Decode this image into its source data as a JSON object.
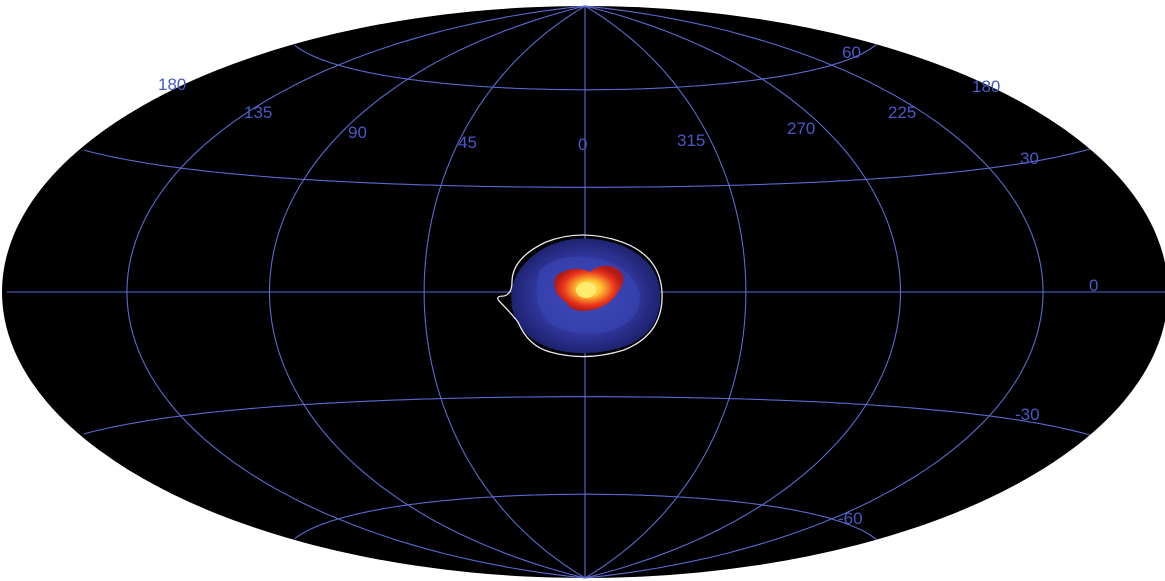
{
  "map": {
    "projection": "aitoff-hammer",
    "coordinate_system": "galactic",
    "colors": {
      "background": "#000000",
      "grid": "#5a6ad0",
      "labels": "#4a58c8",
      "emission_outer": "#2a2f8a",
      "emission_mid": "#3e48b8",
      "emission_core": "#e8331c",
      "emission_peak": "#ffe24a",
      "contour": "#e8e8f0"
    },
    "longitude_labels": [
      {
        "id": "left-edge-180",
        "text": "180"
      },
      {
        "id": "135",
        "text": "135"
      },
      {
        "id": "90",
        "text": "90"
      },
      {
        "id": "45",
        "text": "45"
      },
      {
        "id": "0",
        "text": "0"
      },
      {
        "id": "315",
        "text": "315"
      },
      {
        "id": "270",
        "text": "270"
      },
      {
        "id": "225",
        "text": "225"
      },
      {
        "id": "right-edge-180",
        "text": "180"
      }
    ],
    "latitude_labels": [
      {
        "id": "60",
        "text": "60"
      },
      {
        "id": "30",
        "text": "30"
      },
      {
        "id": "0",
        "text": "0"
      },
      {
        "id": "minus-30",
        "text": "-30"
      },
      {
        "id": "minus-60",
        "text": "-60"
      }
    ],
    "emission_region": {
      "center_lon": 0,
      "center_lat": 0,
      "description_icon": "galactic-center-emission"
    }
  }
}
